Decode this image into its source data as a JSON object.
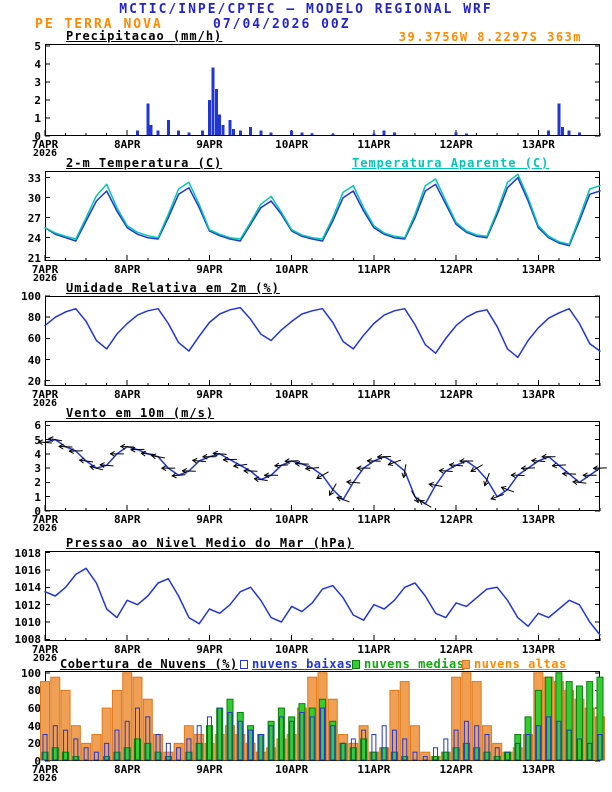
{
  "header": {
    "title": "MCTIC/INPE/CPTEC — MODELO REGIONAL WRF",
    "station": "PE TERRA NOVA",
    "run": "07/04/2026 00Z",
    "location": "39.3756W 8.2297S 363m"
  },
  "colors": {
    "header_blue": "#2424cc",
    "orange": "#ff8a00",
    "line_blue": "#2236d4",
    "apparent_cyan": "#00c8b4",
    "legend_green": "#11aa11",
    "axis_black": "#000000"
  },
  "x_axis": {
    "start_label": "7APR 2026 00Z",
    "hours_total": 162,
    "step_hours": 3,
    "ticks": [
      {
        "hour": 0,
        "label": "7APR",
        "sublabel": "2026"
      },
      {
        "hour": 24,
        "label": "8APR"
      },
      {
        "hour": 48,
        "label": "9APR"
      },
      {
        "hour": 72,
        "label": "10APR"
      },
      {
        "hour": 96,
        "label": "11APR"
      },
      {
        "hour": 120,
        "label": "12APR"
      },
      {
        "hour": 144,
        "label": "13APR"
      }
    ]
  },
  "chart_data": [
    {
      "id": "precipitation",
      "type": "bar",
      "title": "Precipitacao (mm/h)",
      "ylim": [
        0,
        5.1
      ],
      "yticks": [
        0,
        1,
        2,
        3,
        4,
        5
      ],
      "color": "#2236d4",
      "bars": [
        [
          27,
          0.3
        ],
        [
          30,
          1.8
        ],
        [
          31,
          0.6
        ],
        [
          33,
          0.3
        ],
        [
          36,
          0.9
        ],
        [
          39,
          0.3
        ],
        [
          42,
          0.2
        ],
        [
          46,
          0.3
        ],
        [
          48,
          2.0
        ],
        [
          49,
          3.8
        ],
        [
          50,
          2.6
        ],
        [
          51,
          1.2
        ],
        [
          52,
          0.6
        ],
        [
          54,
          0.9
        ],
        [
          55,
          0.4
        ],
        [
          57,
          0.3
        ],
        [
          60,
          0.5
        ],
        [
          63,
          0.3
        ],
        [
          66,
          0.2
        ],
        [
          72,
          0.3
        ],
        [
          75,
          0.2
        ],
        [
          78,
          0.15
        ],
        [
          84,
          0.1
        ],
        [
          96,
          0.15
        ],
        [
          99,
          0.3
        ],
        [
          102,
          0.2
        ],
        [
          120,
          0.2
        ],
        [
          123,
          0.15
        ],
        [
          147,
          0.3
        ],
        [
          150,
          1.8
        ],
        [
          151,
          0.5
        ],
        [
          153,
          0.3
        ],
        [
          156,
          0.2
        ]
      ]
    },
    {
      "id": "temperature",
      "type": "line",
      "title": "2-m Temperatura (C)",
      "title2": "Temperatura Aparente (C)",
      "ylim": [
        20.5,
        34
      ],
      "yticks": [
        21,
        24,
        27,
        30,
        33
      ],
      "series": [
        {
          "name": "2-m Temperatura (C)",
          "color": "#2236d4",
          "values": [
            25.5,
            24.5,
            24.0,
            23.5,
            26.5,
            29.5,
            31.0,
            28.0,
            25.5,
            24.5,
            24.0,
            23.8,
            27.0,
            30.5,
            31.5,
            28.5,
            25.0,
            24.3,
            23.8,
            23.5,
            26.0,
            28.5,
            29.5,
            27.5,
            25.0,
            24.2,
            23.8,
            23.5,
            26.5,
            30.0,
            31.0,
            28.0,
            25.5,
            24.5,
            24.0,
            23.8,
            27.0,
            31.0,
            32.0,
            29.0,
            26.0,
            24.8,
            24.2,
            24.0,
            27.5,
            31.5,
            33.0,
            29.5,
            25.5,
            24.0,
            23.2,
            22.8,
            26.5,
            30.5,
            31.0
          ]
        },
        {
          "name": "Temperatura Aparente (C)",
          "color": "#00c8b4",
          "values": [
            25.5,
            24.7,
            24.2,
            23.8,
            27.0,
            30.3,
            32.0,
            28.5,
            25.8,
            24.8,
            24.3,
            24.0,
            27.5,
            31.3,
            32.3,
            29.0,
            25.2,
            24.5,
            24.0,
            23.8,
            26.3,
            29.0,
            30.2,
            27.8,
            25.2,
            24.4,
            24.0,
            23.8,
            27.0,
            30.8,
            31.8,
            28.5,
            25.8,
            24.7,
            24.2,
            24.0,
            27.5,
            31.8,
            32.8,
            29.5,
            26.3,
            25.0,
            24.4,
            24.2,
            28.0,
            32.3,
            33.5,
            30.0,
            25.8,
            24.2,
            23.4,
            23.0,
            27.0,
            31.3,
            31.8
          ]
        }
      ]
    },
    {
      "id": "humidity",
      "type": "line",
      "title": "Umidade Relativa em 2m (%)",
      "ylim": [
        15,
        100
      ],
      "yticks": [
        20,
        40,
        60,
        80,
        100
      ],
      "series": [
        {
          "name": "Umidade Relativa em 2m (%)",
          "color": "#2236d4",
          "values": [
            72,
            80,
            85,
            88,
            76,
            58,
            50,
            64,
            74,
            82,
            86,
            88,
            74,
            56,
            48,
            62,
            75,
            83,
            87,
            89,
            78,
            64,
            58,
            68,
            76,
            83,
            86,
            88,
            75,
            57,
            50,
            63,
            74,
            82,
            86,
            88,
            73,
            54,
            46,
            60,
            72,
            80,
            85,
            87,
            71,
            50,
            42,
            58,
            70,
            79,
            84,
            88,
            74,
            55,
            48
          ]
        }
      ]
    },
    {
      "id": "wind",
      "type": "line",
      "title": "Vento em 10m (m/s)",
      "ylim": [
        0,
        6.3
      ],
      "yticks": [
        0,
        1,
        2,
        3,
        4,
        5,
        6
      ],
      "directions_deg": [
        185,
        190,
        182,
        178,
        188,
        195,
        185,
        180,
        182,
        178,
        185,
        190,
        180,
        175,
        182,
        186,
        180,
        185,
        178,
        172,
        182,
        188,
        180,
        176,
        178,
        182,
        175,
        150,
        120,
        200,
        185,
        180,
        182,
        178,
        160,
        100,
        60,
        210,
        190,
        184,
        185,
        180,
        150,
        110,
        160,
        200,
        182,
        178,
        184,
        180,
        176,
        182,
        186,
        180,
        178
      ],
      "series": [
        {
          "name": "Vento em 10m (m/s)",
          "color": "#2236d4",
          "values": [
            4.8,
            5.0,
            4.5,
            4.2,
            3.5,
            3.0,
            3.2,
            4.0,
            4.5,
            4.3,
            4.0,
            3.8,
            3.0,
            2.5,
            2.8,
            3.5,
            3.8,
            4.0,
            3.6,
            3.2,
            2.8,
            2.2,
            2.5,
            3.2,
            3.5,
            3.3,
            3.0,
            2.5,
            1.5,
            0.8,
            2.0,
            3.0,
            3.5,
            3.8,
            3.4,
            2.8,
            1.0,
            0.5,
            1.8,
            2.8,
            3.2,
            3.5,
            3.0,
            2.2,
            1.0,
            1.5,
            2.5,
            3.0,
            3.5,
            3.8,
            3.2,
            2.6,
            2.0,
            2.5,
            3.0
          ]
        }
      ]
    },
    {
      "id": "pressure",
      "type": "line",
      "title": "Pressao ao Nivel Medio do Mar (hPa)",
      "ylim": [
        1007.8,
        1018.2
      ],
      "yticks": [
        1008,
        1010,
        1012,
        1014,
        1016,
        1018
      ],
      "series": [
        {
          "name": "Pressao ao Nivel Medio do Mar (hPa)",
          "color": "#2236d4",
          "values": [
            1013.5,
            1013.0,
            1014.0,
            1015.5,
            1016.2,
            1014.5,
            1011.5,
            1010.5,
            1012.5,
            1012.0,
            1013.0,
            1014.5,
            1015.0,
            1013.0,
            1010.5,
            1009.8,
            1011.5,
            1011.0,
            1012.0,
            1013.5,
            1014.0,
            1012.5,
            1010.5,
            1010.0,
            1011.8,
            1011.2,
            1012.2,
            1013.8,
            1014.2,
            1012.8,
            1010.8,
            1010.2,
            1012.0,
            1011.5,
            1012.5,
            1014.0,
            1014.5,
            1013.0,
            1011.0,
            1010.5,
            1012.2,
            1011.8,
            1012.8,
            1013.8,
            1014.0,
            1012.5,
            1010.5,
            1009.5,
            1011.0,
            1010.5,
            1011.5,
            1012.5,
            1012.0,
            1010.0,
            1008.5
          ]
        }
      ]
    },
    {
      "id": "clouds",
      "type": "bar-multi",
      "title": "Cobertura de Nuvens (%)",
      "ylim": [
        0,
        102
      ],
      "yticks": [
        0,
        20,
        40,
        60,
        80,
        100
      ],
      "series": [
        {
          "name": "nuvens altas",
          "color": "#f0a055",
          "edge": "#e07818",
          "style": "fill",
          "values": [
            90,
            95,
            80,
            40,
            20,
            30,
            60,
            80,
            100,
            95,
            70,
            30,
            10,
            20,
            40,
            30,
            20,
            30,
            40,
            30,
            20,
            10,
            15,
            25,
            30,
            60,
            95,
            100,
            70,
            30,
            20,
            40,
            10,
            15,
            80,
            90,
            40,
            10,
            5,
            10,
            95,
            100,
            90,
            40,
            20,
            10,
            15,
            30,
            100,
            95,
            90,
            80,
            70,
            60,
            50
          ]
        },
        {
          "name": "nuvens medias",
          "color": "#33cc33",
          "edge": "#0a7d0a",
          "style": "fill",
          "values": [
            10,
            15,
            10,
            5,
            0,
            0,
            5,
            10,
            15,
            25,
            20,
            10,
            5,
            0,
            10,
            20,
            40,
            60,
            70,
            55,
            40,
            30,
            45,
            60,
            50,
            65,
            60,
            70,
            45,
            20,
            15,
            25,
            10,
            15,
            10,
            5,
            0,
            0,
            5,
            10,
            15,
            20,
            15,
            10,
            5,
            10,
            30,
            50,
            80,
            95,
            100,
            90,
            85,
            90,
            95
          ]
        },
        {
          "name": "nuvens baixas",
          "color": "#2236d4",
          "edge": "#2236d4",
          "style": "hollow",
          "values": [
            30,
            40,
            35,
            25,
            15,
            10,
            20,
            35,
            45,
            60,
            50,
            30,
            20,
            15,
            25,
            40,
            50,
            60,
            55,
            45,
            35,
            30,
            40,
            50,
            45,
            55,
            50,
            60,
            40,
            20,
            25,
            35,
            30,
            40,
            35,
            25,
            10,
            5,
            15,
            25,
            35,
            45,
            40,
            30,
            15,
            10,
            20,
            30,
            40,
            50,
            45,
            35,
            25,
            20,
            30
          ]
        }
      ]
    }
  ]
}
